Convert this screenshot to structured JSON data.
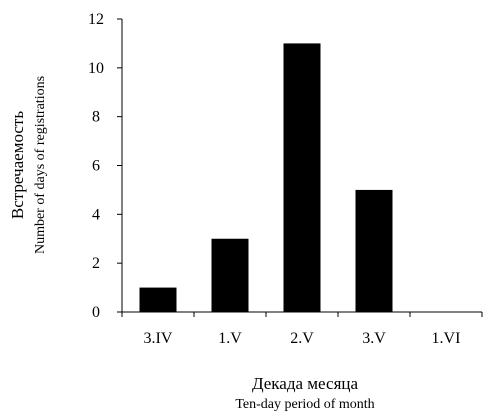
{
  "chart_data": {
    "type": "bar",
    "categories": [
      "3.IV",
      "1.V",
      "2.V",
      "3.V",
      "1.VI"
    ],
    "values": [
      1,
      3,
      11,
      5,
      0
    ],
    "ylim": [
      0,
      12
    ],
    "yticks": [
      0,
      2,
      4,
      6,
      8,
      10,
      12
    ],
    "grid": false,
    "legend": "none",
    "bar_color": "#000000",
    "xlabel": "Декада месяца",
    "xlabel_en": "Ten-day period of month",
    "ylabel": "Встречаемость",
    "ylabel_en": "Number of days of registrations"
  }
}
